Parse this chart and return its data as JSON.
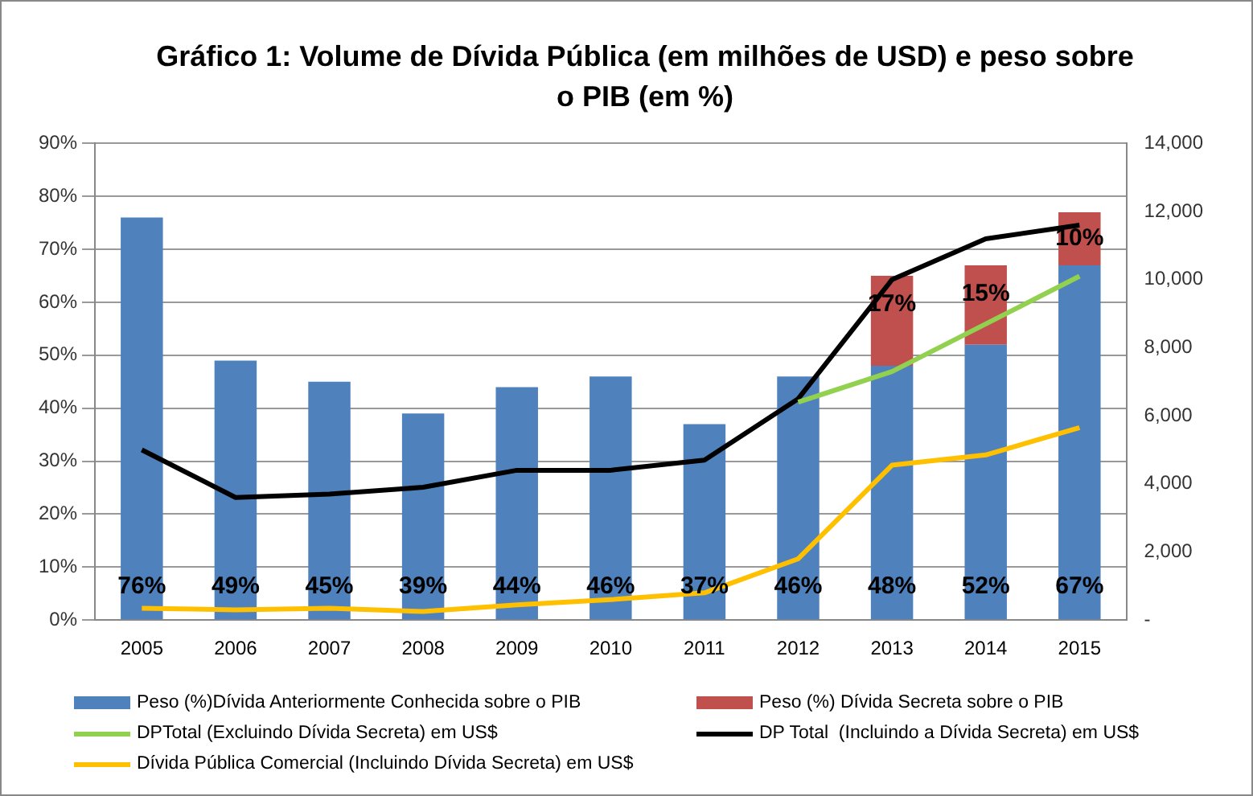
{
  "chart_data": {
    "type": "bar",
    "title": "Gráfico 1: Volume de Dívida Pública (em milhões de USD) e peso sobre o PIB (em %)",
    "categories": [
      "2005",
      "2006",
      "2007",
      "2008",
      "2009",
      "2010",
      "2011",
      "2012",
      "2013",
      "2014",
      "2015"
    ],
    "stacked": true,
    "legend": "bottom",
    "grid": "y",
    "marker": "none",
    "line_style": "solid",
    "ylim": [
      0,
      90
    ],
    "yticks": [
      {
        "value": 0,
        "label": "0%"
      },
      {
        "value": 10,
        "label": "10%"
      },
      {
        "value": 20,
        "label": "20%"
      },
      {
        "value": 30,
        "label": "30%"
      },
      {
        "value": 40,
        "label": "40%"
      },
      {
        "value": 50,
        "label": "50%"
      },
      {
        "value": 60,
        "label": "60%"
      },
      {
        "value": 70,
        "label": "70%"
      },
      {
        "value": 80,
        "label": "80%"
      },
      {
        "value": 90,
        "label": "90%"
      }
    ],
    "y2lim": [
      0,
      14000
    ],
    "y2ticks": [
      {
        "value": 0,
        "label": "-"
      },
      {
        "value": 2000,
        "label": "2,000"
      },
      {
        "value": 4000,
        "label": "4,000"
      },
      {
        "value": 6000,
        "label": "6,000"
      },
      {
        "value": 8000,
        "label": "8,000"
      },
      {
        "value": 10000,
        "label": "10,000"
      },
      {
        "value": 12000,
        "label": "12,000"
      },
      {
        "value": 14000,
        "label": "14,000"
      }
    ],
    "series": [
      {
        "name": "Peso (%)Dívida Anteriormente Conhecida sobre o PIB",
        "color": "#4f81bd",
        "values": [
          76,
          49,
          45,
          39,
          44,
          46,
          37,
          46,
          48,
          52,
          67
        ],
        "value_labels": [
          "76%",
          "49%",
          "45%",
          "39%",
          "44%",
          "46%",
          "37%",
          "46%",
          "48%",
          "52%",
          "67%"
        ]
      },
      {
        "name": "Peso (%) Dívida Secreta sobre o PIB",
        "color": "#c0504d",
        "values": [
          null,
          null,
          null,
          null,
          null,
          null,
          null,
          null,
          17,
          15,
          10
        ],
        "value_labels": [
          null,
          null,
          null,
          null,
          null,
          null,
          null,
          null,
          "17%",
          "15%",
          "10%"
        ]
      },
      {
        "name": "DPTotal (Excluindo Dívida Secreta) em US$",
        "type": "line",
        "axis": "y2",
        "color": "#92d050",
        "values": [
          null,
          null,
          null,
          null,
          null,
          null,
          null,
          6400,
          7300,
          8700,
          10100
        ]
      },
      {
        "name": "DP Total  (Incluindo a Dívida Secreta) em US$",
        "type": "line",
        "axis": "y2",
        "color": "#000000",
        "values": [
          5000,
          3600,
          3700,
          3900,
          4400,
          4400,
          4700,
          6500,
          10000,
          11200,
          11600
        ]
      },
      {
        "name": "Dívida Pública Comercial (Incluindo Dívida Secreta) em US$",
        "type": "line",
        "axis": "y2",
        "color": "#ffc000",
        "values": [
          350,
          300,
          350,
          250,
          450,
          600,
          800,
          1800,
          4550,
          4850,
          5650
        ]
      }
    ]
  }
}
